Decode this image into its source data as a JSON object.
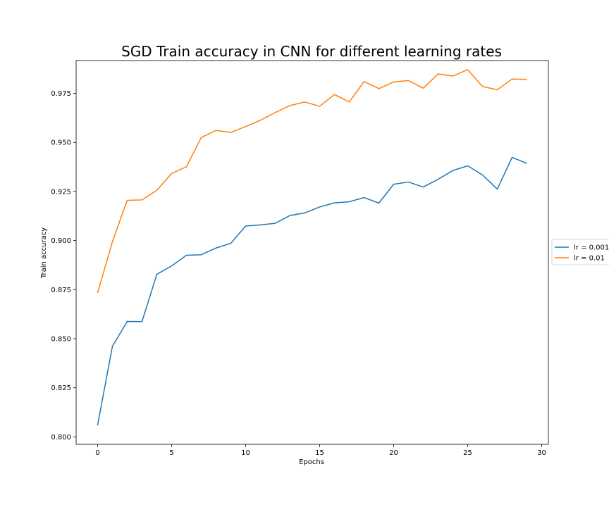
{
  "chart_data": {
    "type": "line",
    "title": "SGD Train accuracy in CNN for different learning rates",
    "xlabel": "Epochs",
    "ylabel": "Train accuracy",
    "xlim": [
      -1.45,
      30.45
    ],
    "ylim": [
      0.7962,
      0.9917
    ],
    "xticks": [
      0,
      5,
      10,
      15,
      20,
      25,
      30
    ],
    "yticks": [
      0.8,
      0.825,
      0.85,
      0.875,
      0.9,
      0.925,
      0.95,
      0.975
    ],
    "ytick_labels": [
      "0.800",
      "0.825",
      "0.850",
      "0.875",
      "0.900",
      "0.925",
      "0.950",
      "0.975"
    ],
    "grid": false,
    "legend_position": "center right (outside axes)",
    "x": [
      0,
      1,
      2,
      3,
      4,
      5,
      6,
      7,
      8,
      9,
      10,
      11,
      12,
      13,
      14,
      15,
      16,
      17,
      18,
      19,
      20,
      21,
      22,
      23,
      24,
      25,
      26,
      27,
      28,
      29
    ],
    "series": [
      {
        "name": "lr = 0.001",
        "color": "#1f77b4",
        "values": [
          0.8059,
          0.8461,
          0.8588,
          0.8587,
          0.8828,
          0.8871,
          0.8925,
          0.8928,
          0.8962,
          0.8986,
          0.9074,
          0.908,
          0.9088,
          0.9128,
          0.9141,
          0.9171,
          0.9192,
          0.9198,
          0.9219,
          0.9191,
          0.9287,
          0.9298,
          0.9273,
          0.9312,
          0.9357,
          0.9381,
          0.9334,
          0.9262,
          0.9424,
          0.9393
        ]
      },
      {
        "name": "lr = 0.01",
        "color": "#ff7f0e",
        "values": [
          0.8733,
          0.8994,
          0.9205,
          0.9207,
          0.9256,
          0.9342,
          0.9376,
          0.9525,
          0.9561,
          0.9551,
          0.9581,
          0.9613,
          0.9652,
          0.9688,
          0.9706,
          0.9684,
          0.9744,
          0.9706,
          0.981,
          0.9774,
          0.9808,
          0.9815,
          0.9776,
          0.9849,
          0.9838,
          0.9871,
          0.9785,
          0.9768,
          0.9823,
          0.9821
        ]
      }
    ]
  }
}
